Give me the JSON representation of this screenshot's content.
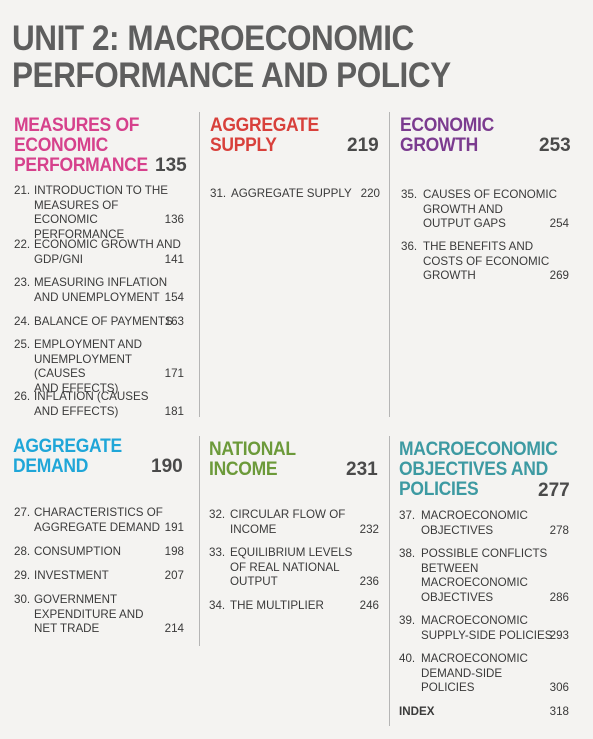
{
  "unit_title_line1": "UNIT 2: MACROECONOMIC",
  "unit_title_line2": "PERFORMANCE AND POLICY",
  "colors": {
    "measures": "#d6418c",
    "aggregate_supply": "#d8403b",
    "economic_growth": "#7b3b8f",
    "aggregate_demand": "#1fa6d8",
    "national_income": "#6c9a3a",
    "macro_policies": "#3d9aa2"
  },
  "sections": {
    "measures": {
      "title_lines": [
        "MEASURES OF",
        "ECONOMIC",
        "PERFORMANCE"
      ],
      "page": "135",
      "chapters": [
        {
          "num": "21.",
          "text": "INTRODUCTION TO THE\nMEASURES OF ECONOMIC\nPERFORMANCE",
          "page": "136"
        },
        {
          "num": "22.",
          "text": "ECONOMIC GROWTH AND\nGDP/GNI",
          "page": "141"
        },
        {
          "num": "23.",
          "text": "MEASURING INFLATION\nAND UNEMPLOYMENT",
          "page": "154"
        },
        {
          "num": "24.",
          "text": "BALANCE OF PAYMENTS",
          "page": "163"
        },
        {
          "num": "25.",
          "text": "EMPLOYMENT AND\nUNEMPLOYMENT (CAUSES\nAND EFFECTS)",
          "page": "171"
        },
        {
          "num": "26.",
          "text": "INFLATION (CAUSES\nAND EFFECTS)",
          "page": "181"
        }
      ]
    },
    "aggregate_supply": {
      "title_lines": [
        "AGGREGATE",
        "SUPPLY"
      ],
      "page": "219",
      "chapters": [
        {
          "num": "31.",
          "text": "AGGREGATE SUPPLY",
          "page": "220"
        }
      ]
    },
    "economic_growth": {
      "title_lines": [
        "ECONOMIC",
        "GROWTH"
      ],
      "page": "253",
      "chapters": [
        {
          "num": "35.",
          "text": "CAUSES OF ECONOMIC\nGROWTH AND\nOUTPUT GAPS",
          "page": "254"
        },
        {
          "num": "36.",
          "text": "THE BENEFITS AND\nCOSTS OF ECONOMIC\nGROWTH",
          "page": "269"
        }
      ]
    },
    "aggregate_demand": {
      "title_lines": [
        "AGGREGATE",
        "DEMAND"
      ],
      "page": "190",
      "chapters": [
        {
          "num": "27.",
          "text": "CHARACTERISTICS OF\nAGGREGATE DEMAND",
          "page": "191"
        },
        {
          "num": "28.",
          "text": "CONSUMPTION",
          "page": "198"
        },
        {
          "num": "29.",
          "text": "INVESTMENT",
          "page": "207"
        },
        {
          "num": "30.",
          "text": "GOVERNMENT\nEXPENDITURE AND\nNET TRADE",
          "page": "214"
        }
      ]
    },
    "national_income": {
      "title_lines": [
        "NATIONAL",
        "INCOME"
      ],
      "page": "231",
      "chapters": [
        {
          "num": "32.",
          "text": "CIRCULAR FLOW OF\nINCOME",
          "page": "232"
        },
        {
          "num": "33.",
          "text": "EQUILIBRIUM LEVELS\nOF REAL NATIONAL\nOUTPUT",
          "page": "236"
        },
        {
          "num": "34.",
          "text": "THE MULTIPLIER",
          "page": "246"
        }
      ]
    },
    "macro_policies": {
      "title_lines": [
        "MACROECONOMIC",
        "OBJECTIVES AND",
        "POLICIES"
      ],
      "page": "277",
      "chapters": [
        {
          "num": "37.",
          "text": "MACROECONOMIC\nOBJECTIVES",
          "page": "278"
        },
        {
          "num": "38.",
          "text": "POSSIBLE CONFLICTS\nBETWEEN\nMACROECONOMIC\nOBJECTIVES",
          "page": "286"
        },
        {
          "num": "39.",
          "text": "MACROECONOMIC\nSUPPLY-SIDE POLICIES",
          "page": "293"
        },
        {
          "num": "40.",
          "text": "MACROECONOMIC\nDEMAND-SIDE\nPOLICIES",
          "page": "306"
        }
      ]
    }
  },
  "index": {
    "label": "INDEX",
    "page": "318"
  }
}
